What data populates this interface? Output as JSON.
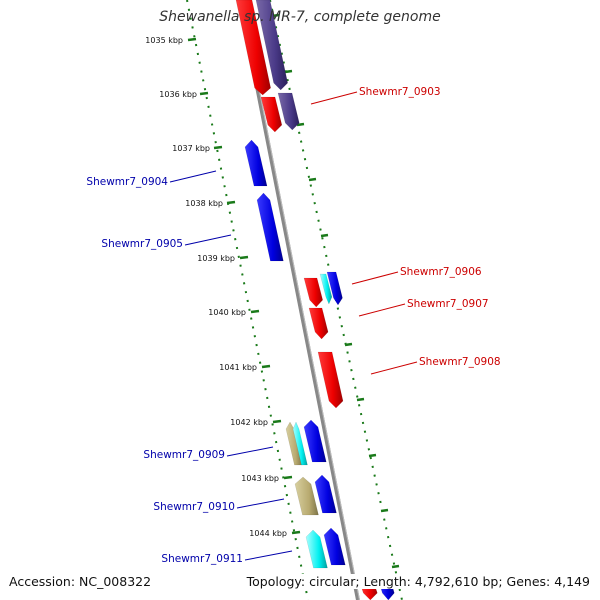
{
  "title": "Shewanella sp. MR-7, complete genome",
  "accession": "Accession: NC_008322",
  "summary": "Topology: circular; Length: 4,792,610 bp; Genes: 4,149",
  "colors": {
    "plus_strand_label": "#cc0000",
    "minus_strand_label": "#0000aa",
    "tick": "#1a7a1a",
    "backbone": "#888888"
  },
  "kbp_ticks": [
    "1035 kbp",
    "1036 kbp",
    "1037 kbp",
    "1038 kbp",
    "1039 kbp",
    "1040 kbp",
    "1041 kbp",
    "1042 kbp",
    "1043 kbp",
    "1044 kbp"
  ],
  "genes": [
    {
      "label": "Shewmr7_0903",
      "strand": "plus"
    },
    {
      "label": "Shewmr7_0904",
      "strand": "minus"
    },
    {
      "label": "Shewmr7_0905",
      "strand": "minus"
    },
    {
      "label": "Shewmr7_0906",
      "strand": "plus"
    },
    {
      "label": "Shewmr7_0907",
      "strand": "plus"
    },
    {
      "label": "Shewmr7_0908",
      "strand": "plus"
    },
    {
      "label": "Shewmr7_0909",
      "strand": "minus"
    },
    {
      "label": "Shewmr7_0910",
      "strand": "minus"
    },
    {
      "label": "Shewmr7_0911",
      "strand": "minus"
    }
  ]
}
